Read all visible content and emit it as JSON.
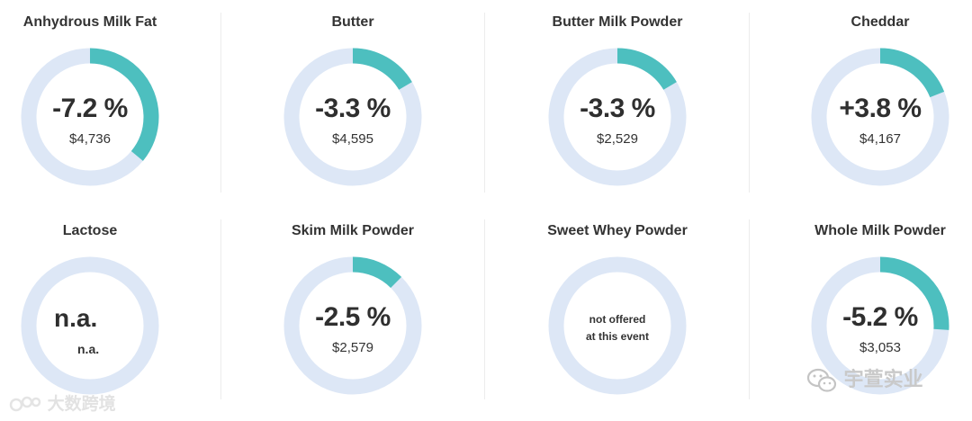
{
  "colors": {
    "track": "#dde7f6",
    "fill": "#4dbfbf",
    "divider": "#ececec"
  },
  "chart_data": {
    "type": "donut",
    "items": [
      {
        "title": "Anhydrous Milk Fat",
        "change": -7.2,
        "change_label": "-7.2 %",
        "price": "$4,736"
      },
      {
        "title": "Butter",
        "change": -3.3,
        "change_label": "-3.3 %",
        "price": "$4,595"
      },
      {
        "title": "Butter Milk Powder",
        "change": -3.3,
        "change_label": "-3.3 %",
        "price": "$2,529"
      },
      {
        "title": "Cheddar",
        "change": 3.8,
        "change_label": "+3.8 %",
        "price": "$4,167"
      },
      {
        "title": "Lactose",
        "change": null,
        "change_label": "n.a.",
        "price": "n.a."
      },
      {
        "title": "Skim Milk Powder",
        "change": -2.5,
        "change_label": "-2.5 %",
        "price": "$2,579"
      },
      {
        "title": "Sweet Whey Powder",
        "change": null,
        "note_line1": "not offered",
        "note_line2": "at this event"
      },
      {
        "title": "Whole Milk Powder",
        "change": -5.2,
        "change_label": "-5.2 %",
        "price": "$3,053"
      }
    ]
  },
  "watermarks": {
    "left": "大数跨境",
    "right": "宇萱实业"
  }
}
